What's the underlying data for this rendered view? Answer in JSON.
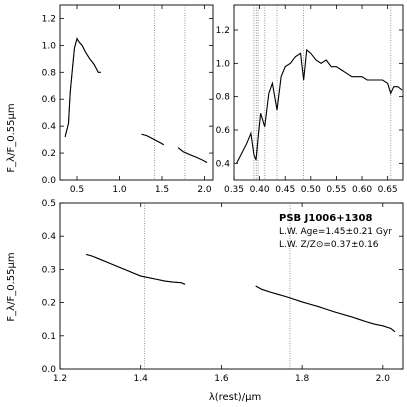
{
  "chart_data": [
    {
      "type": "line",
      "panel": "top-left",
      "ylabel": "F_λ/F_0.55μm",
      "xlim": [
        0.3,
        2.1
      ],
      "ylim": [
        0.0,
        1.3
      ],
      "xticks": [
        0.5,
        1.0,
        1.5,
        2.0
      ],
      "xtick_labels": [
        "0.5",
        "1.0",
        "1.5",
        "2.0"
      ],
      "yticks": [
        0.0,
        0.2,
        0.4,
        0.6,
        0.8,
        1.0,
        1.2
      ],
      "ytick_labels": [
        "0.0",
        "0.2",
        "0.4",
        "0.6",
        "0.8",
        "1.0",
        "1.2"
      ],
      "vlines": [
        1.41,
        1.77
      ],
      "series": [
        {
          "color": "#22aa22",
          "segments": [
            {
              "x": [
                0.36,
                0.4,
                0.42,
                0.45,
                0.47,
                0.5,
                0.53,
                0.56,
                0.6,
                0.65,
                0.7,
                0.75,
                0.78
              ],
              "y": [
                0.32,
                0.42,
                0.65,
                0.85,
                0.98,
                1.05,
                1.02,
                1.0,
                0.95,
                0.9,
                0.86,
                0.8,
                0.8
              ]
            },
            {
              "x": [
                1.26,
                1.32,
                1.38,
                1.44,
                1.5,
                1.52
              ],
              "y": [
                0.34,
                0.33,
                0.31,
                0.29,
                0.27,
                0.26
              ]
            },
            {
              "x": [
                1.69,
                1.75,
                1.82,
                1.9,
                1.97,
                2.03
              ],
              "y": [
                0.24,
                0.21,
                0.19,
                0.17,
                0.15,
                0.13
              ]
            }
          ]
        },
        {
          "color": "#000000",
          "segments": [
            {
              "x": [
                0.36,
                0.4,
                0.42,
                0.45,
                0.47,
                0.5,
                0.53,
                0.56,
                0.6,
                0.65,
                0.7,
                0.75,
                0.78
              ],
              "y": [
                0.32,
                0.42,
                0.65,
                0.85,
                0.98,
                1.05,
                1.02,
                1.0,
                0.95,
                0.9,
                0.86,
                0.8,
                0.8
              ]
            },
            {
              "x": [
                1.26,
                1.32,
                1.38,
                1.44,
                1.5,
                1.52
              ],
              "y": [
                0.34,
                0.33,
                0.31,
                0.29,
                0.27,
                0.26
              ]
            },
            {
              "x": [
                1.69,
                1.75,
                1.82,
                1.9,
                1.97,
                2.03
              ],
              "y": [
                0.24,
                0.21,
                0.19,
                0.17,
                0.15,
                0.13
              ]
            }
          ]
        }
      ]
    },
    {
      "type": "line",
      "panel": "top-right",
      "xlim": [
        0.35,
        0.68
      ],
      "ylim": [
        0.3,
        1.35
      ],
      "xticks": [
        0.35,
        0.4,
        0.45,
        0.5,
        0.55,
        0.6,
        0.65
      ],
      "xtick_labels": [
        "0.35",
        "0.40",
        "0.45",
        "0.50",
        "0.55",
        "0.60",
        "0.65"
      ],
      "yticks": [
        0.4,
        0.6,
        0.8,
        1.0,
        1.2
      ],
      "ytick_labels": [
        "0.4",
        "0.6",
        "0.8",
        "1.0",
        "1.2"
      ],
      "vlines": [
        0.3889,
        0.3934,
        0.397,
        0.4102,
        0.434,
        0.4861,
        0.6563
      ],
      "series": [
        {
          "color": "#000000",
          "segments": [
            {
              "x": [
                0.355,
                0.365,
                0.375,
                0.383,
                0.389,
                0.393,
                0.397,
                0.402,
                0.41,
                0.418,
                0.425,
                0.434,
                0.442,
                0.45,
                0.46,
                0.47,
                0.48,
                0.486,
                0.492,
                0.5,
                0.51,
                0.52,
                0.53,
                0.54,
                0.55,
                0.56,
                0.57,
                0.58,
                0.59,
                0.6,
                0.61,
                0.62,
                0.63,
                0.64,
                0.65,
                0.656,
                0.662,
                0.67,
                0.678
              ],
              "y": [
                0.4,
                0.46,
                0.52,
                0.58,
                0.45,
                0.42,
                0.55,
                0.7,
                0.62,
                0.82,
                0.88,
                0.72,
                0.92,
                0.98,
                1.0,
                1.04,
                1.06,
                0.9,
                1.08,
                1.06,
                1.02,
                1.0,
                1.02,
                0.98,
                0.98,
                0.96,
                0.94,
                0.92,
                0.92,
                0.92,
                0.9,
                0.9,
                0.9,
                0.9,
                0.88,
                0.82,
                0.86,
                0.86,
                0.84
              ]
            }
          ]
        }
      ]
    },
    {
      "type": "line",
      "panel": "bottom",
      "ylabel": "F_λ/F_0.55μm",
      "xlabel": "λ(rest)/μm",
      "xlim": [
        1.2,
        2.05
      ],
      "ylim": [
        0.0,
        0.5
      ],
      "xticks": [
        1.2,
        1.4,
        1.6,
        1.8,
        2.0
      ],
      "xtick_labels": [
        "1.2",
        "1.4",
        "1.6",
        "1.8",
        "2.0"
      ],
      "yticks": [
        0.0,
        0.1,
        0.2,
        0.3,
        0.4,
        0.5
      ],
      "ytick_labels": [
        "0.0",
        "0.1",
        "0.2",
        "0.3",
        "0.4",
        "0.5"
      ],
      "vlines": [
        1.41,
        1.77
      ],
      "series": [
        {
          "color": "#22aa22",
          "segments": [
            {
              "x": [
                1.265,
                1.28,
                1.3,
                1.32,
                1.34,
                1.36,
                1.38,
                1.4,
                1.42,
                1.44,
                1.46,
                1.48,
                1.5,
                1.51
              ],
              "y": [
                0.345,
                0.34,
                0.33,
                0.32,
                0.31,
                0.3,
                0.29,
                0.28,
                0.275,
                0.27,
                0.265,
                0.262,
                0.26,
                0.255
              ]
            },
            {
              "x": [
                1.685,
                1.7,
                1.72,
                1.74,
                1.76,
                1.78,
                1.8,
                1.82,
                1.84,
                1.86,
                1.88,
                1.9,
                1.92,
                1.94,
                1.96,
                1.98,
                2.0,
                2.02,
                2.03
              ],
              "y": [
                0.25,
                0.24,
                0.232,
                0.225,
                0.218,
                0.21,
                0.202,
                0.195,
                0.188,
                0.18,
                0.172,
                0.165,
                0.158,
                0.15,
                0.142,
                0.135,
                0.13,
                0.122,
                0.112
              ]
            }
          ]
        },
        {
          "color": "#000000",
          "segments": [
            {
              "x": [
                1.265,
                1.28,
                1.3,
                1.32,
                1.34,
                1.36,
                1.38,
                1.4,
                1.42,
                1.44,
                1.46,
                1.48,
                1.5,
                1.51
              ],
              "y": [
                0.345,
                0.34,
                0.33,
                0.32,
                0.31,
                0.3,
                0.29,
                0.28,
                0.275,
                0.27,
                0.265,
                0.262,
                0.26,
                0.255
              ]
            },
            {
              "x": [
                1.685,
                1.7,
                1.72,
                1.74,
                1.76,
                1.78,
                1.8,
                1.82,
                1.84,
                1.86,
                1.88,
                1.9,
                1.92,
                1.94,
                1.96,
                1.98,
                2.0,
                2.02,
                2.03
              ],
              "y": [
                0.25,
                0.24,
                0.232,
                0.225,
                0.218,
                0.21,
                0.202,
                0.195,
                0.188,
                0.18,
                0.172,
                0.165,
                0.158,
                0.15,
                0.142,
                0.135,
                0.13,
                0.122,
                0.112
              ]
            }
          ]
        }
      ],
      "annotations": [
        "PSB J1006+1308",
        "L.W. Age=1.45±0.21 Gyr",
        "L.W. Z/Z⊙=0.37±0.16"
      ]
    }
  ]
}
